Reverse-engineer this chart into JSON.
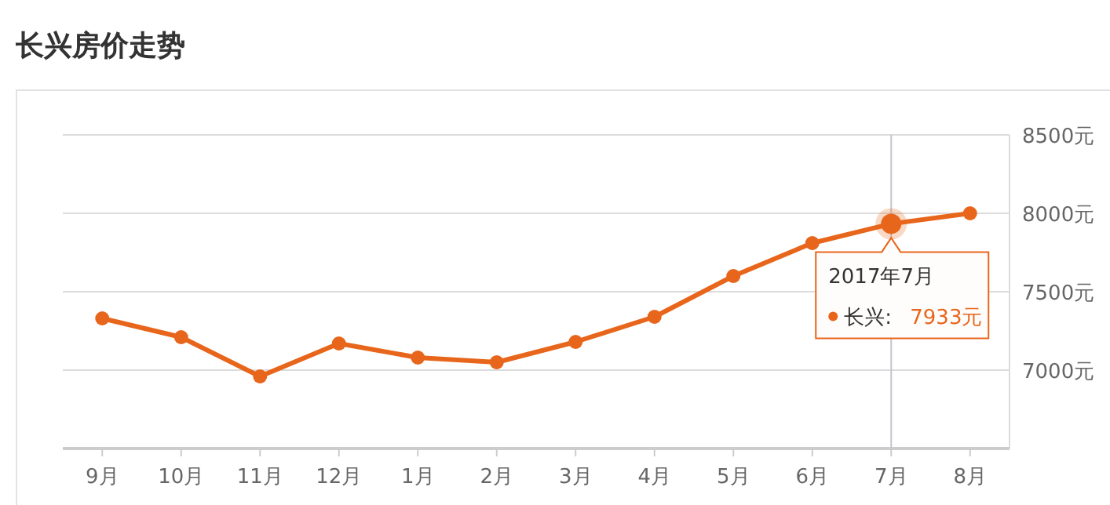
{
  "chart_data": {
    "type": "line",
    "title": "长兴房价走势",
    "categories": [
      "9月",
      "10月",
      "11月",
      "12月",
      "1月",
      "2月",
      "3月",
      "4月",
      "5月",
      "6月",
      "7月",
      "8月"
    ],
    "series": [
      {
        "color": "#e8661c",
        "values": [
          7330,
          7210,
          6960,
          7170,
          7080,
          7050,
          7180,
          7340,
          7600,
          7810,
          7933,
          8000
        ]
      }
    ],
    "ylim": [
      6500,
      8500
    ],
    "yticks": [
      {
        "value": 7000,
        "label": "7000元"
      },
      {
        "value": 7500,
        "label": "7500元"
      },
      {
        "value": 8000,
        "label": "8000元"
      },
      {
        "value": 8500,
        "label": "8500元"
      }
    ],
    "grid": "y",
    "marker": "circle",
    "line_style": "solid",
    "ref_lines": [
      {
        "axis": "x",
        "value": "7月",
        "color": "#c4c4cc"
      }
    ],
    "annotations": [
      "2017年7月",
      "长兴:",
      "7933元"
    ]
  }
}
